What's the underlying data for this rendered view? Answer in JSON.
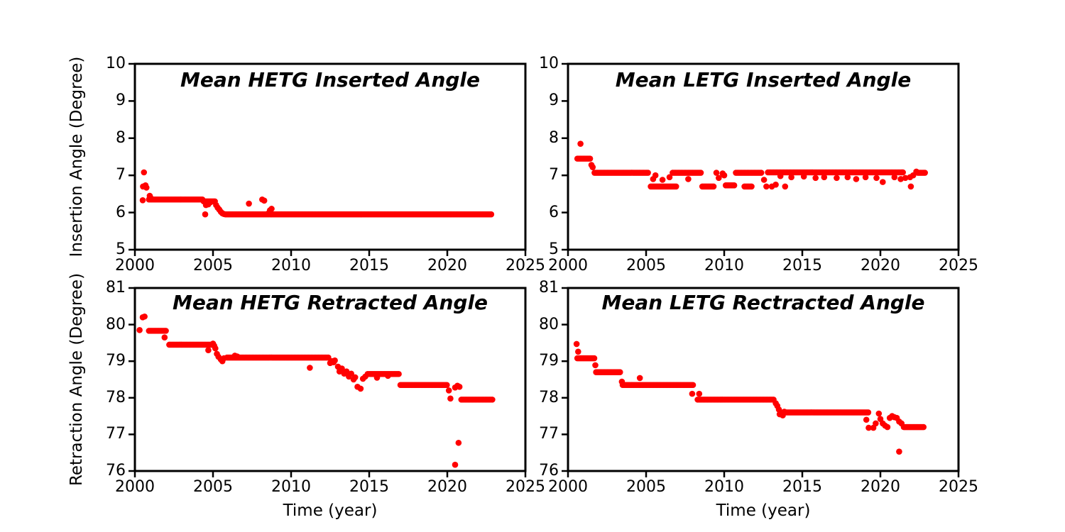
{
  "figure": {
    "background": "#ffffff",
    "dot_color": "#ff0000",
    "axis_color": "#000000",
    "band_step_years": 0.09,
    "marker_radius": 4.3
  },
  "chart_data": [
    {
      "type": "scatter",
      "title": "Mean HETG Inserted Angle",
      "ylabel": "Insertion Angle (Degree)",
      "xlabel": "",
      "xlim": [
        2000,
        2025
      ],
      "ylim": [
        5,
        10
      ],
      "x_ticks": [
        2000,
        2005,
        2010,
        2015,
        2020,
        2025
      ],
      "y_ticks": [
        5,
        6,
        7,
        8,
        9,
        10
      ],
      "legend": "none",
      "grid": false,
      "bands": [
        [
          2000.9,
          2004.35,
          6.35
        ],
        [
          2004.4,
          2005.15,
          6.3
        ],
        [
          2005.8,
          2022.85,
          5.95
        ]
      ],
      "points": [
        [
          2000.5,
          6.33
        ],
        [
          2000.52,
          6.7
        ],
        [
          2000.58,
          7.08
        ],
        [
          2000.68,
          6.73
        ],
        [
          2000.74,
          6.67
        ],
        [
          2000.95,
          6.45
        ],
        [
          2001.0,
          6.4
        ],
        [
          2004.5,
          5.95
        ],
        [
          2004.55,
          6.2
        ],
        [
          2004.7,
          6.22
        ],
        [
          2004.85,
          6.28
        ],
        [
          2005.2,
          6.2
        ],
        [
          2005.3,
          6.13
        ],
        [
          2005.4,
          6.08
        ],
        [
          2005.5,
          6.02
        ],
        [
          2005.6,
          5.98
        ],
        [
          2005.7,
          5.96
        ],
        [
          2007.3,
          6.24
        ],
        [
          2008.15,
          6.35
        ],
        [
          2008.28,
          6.32
        ],
        [
          2008.55,
          5.98
        ],
        [
          2008.65,
          6.06
        ],
        [
          2008.75,
          6.1
        ]
      ]
    },
    {
      "type": "scatter",
      "title": "Mean LETG Inserted Angle",
      "ylabel": "",
      "xlabel": "",
      "xlim": [
        2000,
        2025
      ],
      "ylim": [
        5,
        10
      ],
      "x_ticks": [
        2000,
        2005,
        2010,
        2015,
        2020,
        2025
      ],
      "y_ticks": [
        5,
        6,
        7,
        8,
        9,
        10
      ],
      "legend": "none",
      "grid": false,
      "bands": [
        [
          2000.6,
          2001.45,
          7.45
        ],
        [
          2001.7,
          2005.2,
          7.07
        ],
        [
          2005.3,
          2007.0,
          6.7
        ],
        [
          2006.7,
          2008.5,
          7.07
        ],
        [
          2008.6,
          2009.4,
          6.7
        ],
        [
          2010.1,
          2010.7,
          6.73
        ],
        [
          2010.75,
          2012.4,
          7.07
        ],
        [
          2011.3,
          2011.8,
          6.7
        ],
        [
          2012.8,
          2021.5,
          7.08
        ],
        [
          2022.4,
          2022.85,
          7.07
        ]
      ],
      "points": [
        [
          2000.8,
          7.85
        ],
        [
          2001.5,
          7.28
        ],
        [
          2001.58,
          7.22
        ],
        [
          2005.45,
          6.9
        ],
        [
          2005.6,
          7.0
        ],
        [
          2006.05,
          6.88
        ],
        [
          2006.5,
          6.95
        ],
        [
          2007.7,
          6.9
        ],
        [
          2009.5,
          7.07
        ],
        [
          2009.65,
          6.93
        ],
        [
          2009.9,
          7.05
        ],
        [
          2010.0,
          7.0
        ],
        [
          2012.55,
          6.88
        ],
        [
          2012.7,
          6.7
        ],
        [
          2013.05,
          6.7
        ],
        [
          2013.3,
          6.75
        ],
        [
          2013.9,
          6.7
        ],
        [
          2021.95,
          6.7
        ],
        [
          2013.6,
          6.98
        ],
        [
          2014.3,
          6.95
        ],
        [
          2015.1,
          6.97
        ],
        [
          2015.85,
          6.93
        ],
        [
          2016.4,
          6.95
        ],
        [
          2017.2,
          6.93
        ],
        [
          2017.9,
          6.95
        ],
        [
          2018.45,
          6.9
        ],
        [
          2019.05,
          6.95
        ],
        [
          2019.75,
          6.93
        ],
        [
          2020.15,
          6.82
        ],
        [
          2020.9,
          6.95
        ],
        [
          2021.3,
          6.9
        ],
        [
          2021.6,
          6.93
        ],
        [
          2021.9,
          6.95
        ],
        [
          2022.1,
          7.0
        ],
        [
          2022.3,
          7.1
        ]
      ]
    },
    {
      "type": "scatter",
      "title": "Mean HETG Retracted Angle",
      "ylabel": "Retraction Angle (Degree)",
      "xlabel": "Time (year)",
      "xlim": [
        2000,
        2025
      ],
      "ylim": [
        76,
        81
      ],
      "x_ticks": [
        2000,
        2005,
        2010,
        2015,
        2020,
        2025
      ],
      "y_ticks": [
        76,
        77,
        78,
        79,
        80,
        81
      ],
      "legend": "none",
      "grid": false,
      "bands": [
        [
          2000.9,
          2002.05,
          79.83
        ],
        [
          2002.2,
          2004.95,
          79.45
        ],
        [
          2005.9,
          2012.45,
          79.1
        ],
        [
          2015.0,
          2016.9,
          78.65
        ],
        [
          2017.0,
          2020.0,
          78.35
        ],
        [
          2020.9,
          2022.95,
          77.95
        ]
      ],
      "points": [
        [
          2000.3,
          79.85
        ],
        [
          2000.5,
          80.2
        ],
        [
          2000.62,
          80.22
        ],
        [
          2001.9,
          79.65
        ],
        [
          2004.7,
          79.3
        ],
        [
          2005.0,
          79.48
        ],
        [
          2005.08,
          79.42
        ],
        [
          2005.15,
          79.35
        ],
        [
          2005.25,
          79.2
        ],
        [
          2005.35,
          79.12
        ],
        [
          2005.5,
          79.05
        ],
        [
          2005.6,
          79.0
        ],
        [
          2005.7,
          79.08
        ],
        [
          2006.4,
          79.15
        ],
        [
          2006.55,
          79.13
        ],
        [
          2011.2,
          78.82
        ],
        [
          2012.5,
          78.95
        ],
        [
          2012.62,
          79.0
        ],
        [
          2012.72,
          78.97
        ],
        [
          2012.8,
          79.02
        ],
        [
          2013.0,
          78.85
        ],
        [
          2013.1,
          78.72
        ],
        [
          2013.25,
          78.8
        ],
        [
          2013.4,
          78.66
        ],
        [
          2013.55,
          78.72
        ],
        [
          2013.7,
          78.58
        ],
        [
          2013.85,
          78.66
        ],
        [
          2014.0,
          78.5
        ],
        [
          2014.1,
          78.56
        ],
        [
          2014.25,
          78.3
        ],
        [
          2014.45,
          78.25
        ],
        [
          2014.6,
          78.52
        ],
        [
          2014.75,
          78.58
        ],
        [
          2014.9,
          78.65
        ],
        [
          2015.5,
          78.55
        ],
        [
          2016.2,
          78.6
        ],
        [
          2020.1,
          78.2
        ],
        [
          2020.2,
          77.98
        ],
        [
          2020.5,
          78.28
        ],
        [
          2020.65,
          78.33
        ],
        [
          2020.78,
          78.3
        ],
        [
          2020.5,
          76.17
        ],
        [
          2020.72,
          76.77
        ]
      ]
    },
    {
      "type": "scatter",
      "title": "Mean LETG Rectracted Angle",
      "ylabel": "",
      "xlabel": "Time (year)",
      "xlim": [
        2000,
        2025
      ],
      "ylim": [
        76,
        81
      ],
      "x_ticks": [
        2000,
        2005,
        2010,
        2015,
        2020,
        2025
      ],
      "y_ticks": [
        76,
        77,
        78,
        79,
        80,
        81
      ],
      "legend": "none",
      "grid": false,
      "bands": [
        [
          2000.6,
          2001.75,
          79.08
        ],
        [
          2001.8,
          2003.4,
          78.7
        ],
        [
          2003.5,
          2008.05,
          78.35
        ],
        [
          2008.3,
          2013.2,
          77.95
        ],
        [
          2014.0,
          2019.3,
          77.6
        ],
        [
          2021.5,
          2022.8,
          77.2
        ]
      ],
      "points": [
        [
          2000.55,
          79.47
        ],
        [
          2000.65,
          79.26
        ],
        [
          2001.75,
          78.89
        ],
        [
          2003.45,
          78.44
        ],
        [
          2004.6,
          78.54
        ],
        [
          2007.95,
          78.11
        ],
        [
          2008.4,
          78.11
        ],
        [
          2013.3,
          77.85
        ],
        [
          2013.4,
          77.78
        ],
        [
          2013.5,
          77.68
        ],
        [
          2013.55,
          77.55
        ],
        [
          2013.65,
          77.6
        ],
        [
          2013.75,
          77.52
        ],
        [
          2013.85,
          77.62
        ],
        [
          2019.1,
          77.4
        ],
        [
          2019.25,
          77.18
        ],
        [
          2019.55,
          77.18
        ],
        [
          2019.7,
          77.3
        ],
        [
          2019.9,
          77.57
        ],
        [
          2020.0,
          77.42
        ],
        [
          2020.15,
          77.3
        ],
        [
          2020.3,
          77.24
        ],
        [
          2020.45,
          77.2
        ],
        [
          2020.6,
          77.45
        ],
        [
          2020.75,
          77.5
        ],
        [
          2020.9,
          77.47
        ],
        [
          2021.05,
          77.45
        ],
        [
          2021.2,
          77.35
        ],
        [
          2021.35,
          77.3
        ],
        [
          2021.2,
          76.53
        ]
      ]
    }
  ]
}
